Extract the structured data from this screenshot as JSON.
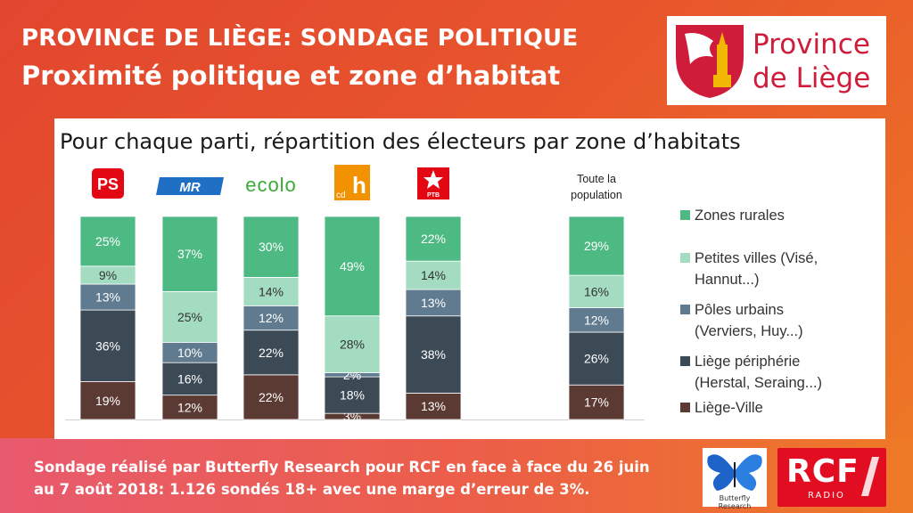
{
  "header": {
    "line1": "PROVINCE DE LIÈGE: SONDAGE POLITIQUE",
    "line2": "Proximité politique et zone d’habitat"
  },
  "logo_province": {
    "line1": "Province",
    "line2": "de Liège"
  },
  "panel_title": "Pour chaque parti, répartition des électeurs par zone d’habitats",
  "party_logos": [
    {
      "text": "PS",
      "color": "#e30613"
    },
    {
      "text": "MR",
      "color": "#1f6fc5"
    },
    {
      "text": "ecolo",
      "color": "#3aa935"
    },
    {
      "text": "cdh",
      "color": "#f39200"
    },
    {
      "text": "PTB",
      "color": "#e30613"
    }
  ],
  "population_label": [
    "Toute la",
    "population"
  ],
  "chart_data": {
    "type": "bar",
    "stacked": true,
    "categories": [
      "PS",
      "MR",
      "ECOLO",
      "cdH",
      "PTB",
      "",
      "Toute la population"
    ],
    "series": [
      {
        "name": "Liège-Ville",
        "color": "#5a3a32",
        "values": [
          19,
          12,
          22,
          3,
          13,
          null,
          17
        ]
      },
      {
        "name": "Liège périphérie (Herstal, Seraing...)",
        "color": "#3c4a56",
        "values": [
          36,
          16,
          22,
          18,
          38,
          null,
          26
        ]
      },
      {
        "name": "Pôles urbains (Verviers, Huy...)",
        "color": "#607b8f",
        "values": [
          13,
          10,
          12,
          2,
          13,
          null,
          12
        ]
      },
      {
        "name": "Petites villes (Visé, Hannut...)",
        "color": "#a3dcc0",
        "values": [
          9,
          25,
          14,
          28,
          14,
          null,
          16
        ]
      },
      {
        "name": "Zones rurales",
        "color": "#4dba84",
        "values": [
          25,
          37,
          30,
          49,
          22,
          null,
          29
        ]
      }
    ],
    "legend": [
      {
        "lines": [
          "Zones rurales"
        ],
        "color": "#4dba84"
      },
      {
        "lines": [
          "Petites villes (Visé,",
          "Hannut...)"
        ],
        "color": "#a3dcc0"
      },
      {
        "lines": [
          "Pôles urbains",
          "(Verviers, Huy...)"
        ],
        "color": "#607b8f"
      },
      {
        "lines": [
          "Liège périphérie",
          "(Herstal, Seraing...)"
        ],
        "color": "#3c4a56"
      },
      {
        "lines": [
          "Liège-Ville"
        ],
        "color": "#5a3a32"
      }
    ],
    "legend_position": "right",
    "grid": false
  },
  "footer": {
    "line1": "Sondage réalisé par Butterfly Research pour RCF en face à face du 26 juin",
    "line2": "au 7 août 2018:  1.126 sondés 18+ avec une marge d’erreur de 3%."
  },
  "logo_butterfly": {
    "text": "Butterfly Research"
  },
  "logo_rcf": {
    "big": "RCF",
    "small": "RADIO"
  }
}
